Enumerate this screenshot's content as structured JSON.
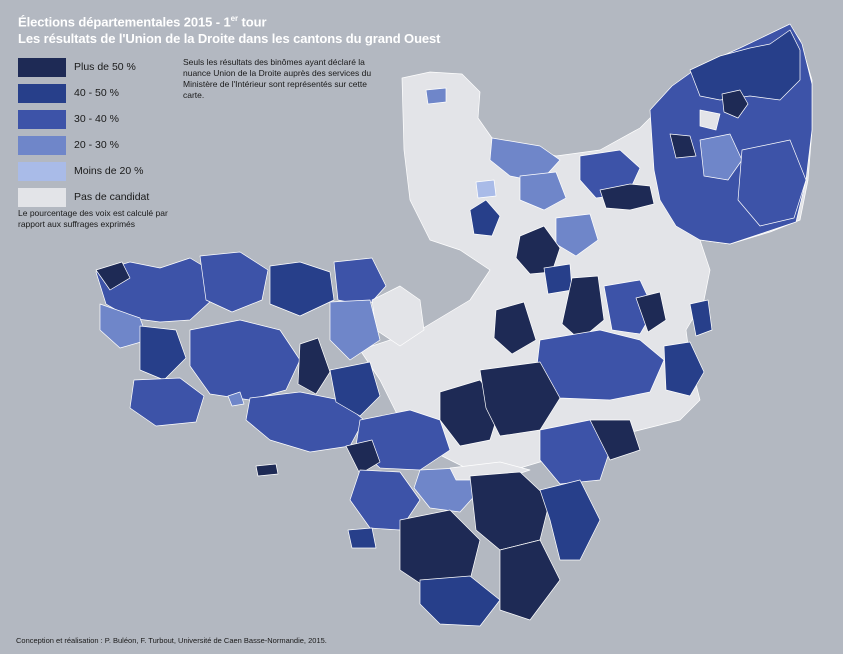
{
  "title": {
    "line1_main": "Élections départementales 2015 - 1",
    "line1_sup": "er",
    "line1_end": " tour",
    "line2": "Les résultats de l'Union de la Droite dans les cantons du grand Ouest"
  },
  "legend": [
    {
      "label": "Plus de 50 %",
      "color": "#1e2a55"
    },
    {
      "label": "40 - 50 %",
      "color": "#273f8a"
    },
    {
      "label": "30 - 40 %",
      "color": "#3d53a8"
    },
    {
      "label": "20 - 30 %",
      "color": "#6f86c9"
    },
    {
      "label": "Moins de 20 %",
      "color": "#a9bbe8"
    },
    {
      "label": "Pas de candidat",
      "color": "#e3e4e8"
    }
  ],
  "notes": {
    "source_note": "Seuls les résultats des binômes ayant déclaré la nuance Union de la Droite auprès des services du Ministère de l'Intérieur sont représentés sur cette carte.",
    "calc_note": "Le pourcentage des voix est calculé par rapport aux suffrages exprimés"
  },
  "credit": "Conception et réalisation : P. Buléon, F. Turbout, Université de Caen Basse-Normandie, 2015.",
  "map": {
    "background_color": "#b3b8c1",
    "border_color": "#ffffff"
  }
}
